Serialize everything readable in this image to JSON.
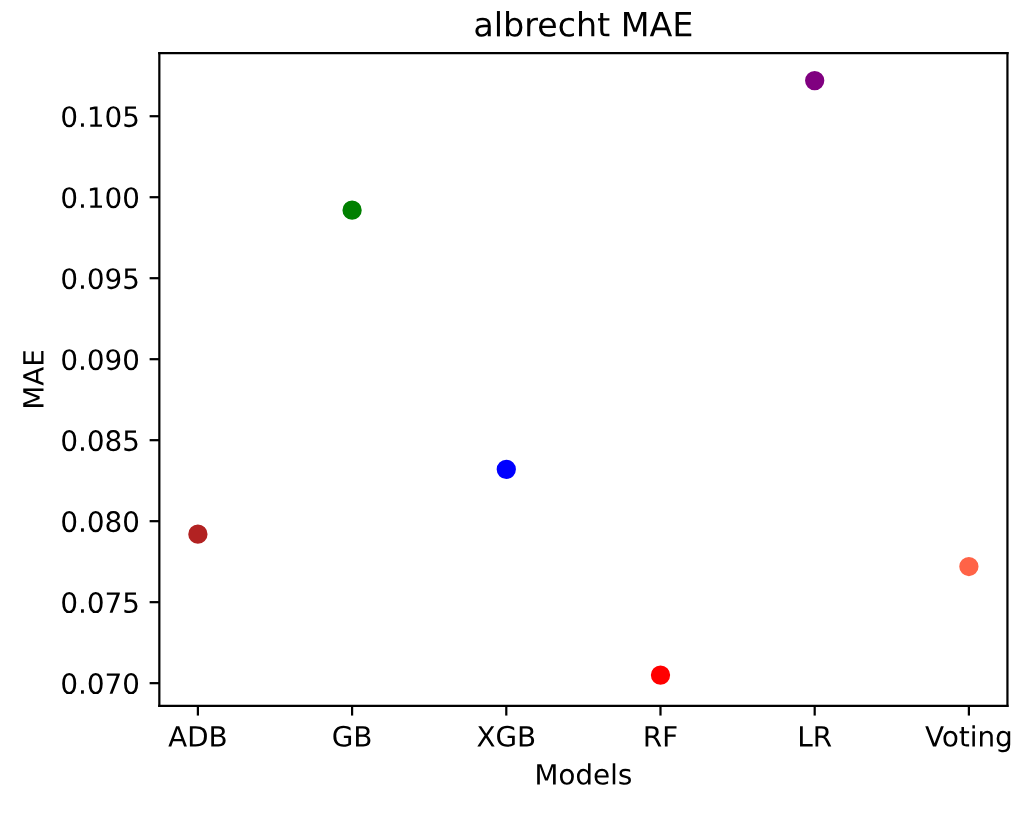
{
  "chart_data": {
    "type": "scatter",
    "title": "albrecht MAE",
    "xlabel": "Models",
    "ylabel": "MAE",
    "categories": [
      "ADB",
      "GB",
      "XGB",
      "RF",
      "LR",
      "Voting"
    ],
    "values": [
      0.0792,
      0.0992,
      0.0832,
      0.0705,
      0.1072,
      0.0772
    ],
    "colors": [
      "#b22222",
      "#008000",
      "#0000ff",
      "#ff0000",
      "#800080",
      "#ff6347"
    ],
    "ylim": [
      0.0686,
      0.1089
    ],
    "yticks": [
      {
        "value": 0.07,
        "label": "0.070"
      },
      {
        "value": 0.075,
        "label": "0.075"
      },
      {
        "value": 0.08,
        "label": "0.080"
      },
      {
        "value": 0.085,
        "label": "0.085"
      },
      {
        "value": 0.09,
        "label": "0.090"
      },
      {
        "value": 0.095,
        "label": "0.095"
      },
      {
        "value": 0.1,
        "label": "0.100"
      },
      {
        "value": 0.105,
        "label": "0.105"
      }
    ],
    "grid": false,
    "legend": false,
    "marker": "circle"
  }
}
